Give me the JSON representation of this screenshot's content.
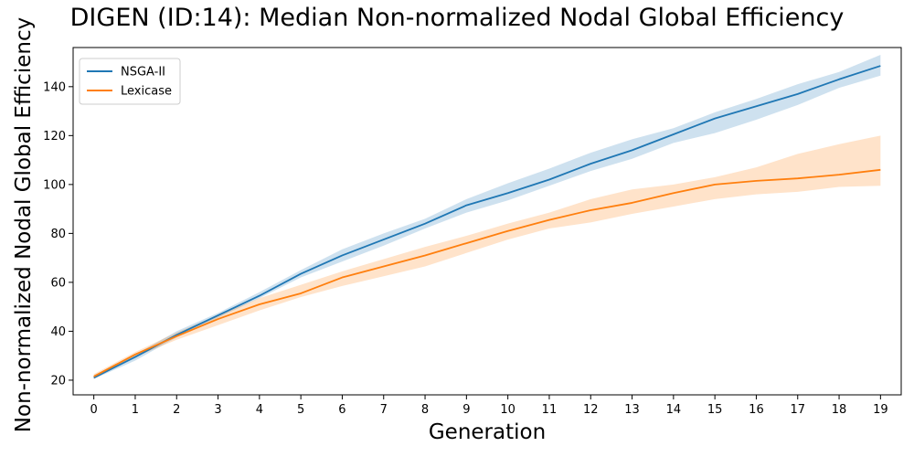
{
  "chart_data": {
    "type": "line",
    "title": "DIGEN (ID:14): Median Non-normalized Nodal Global Efficiency",
    "xlabel": "Generation",
    "ylabel": "Non-normalized Nodal Global Efficiency",
    "x": [
      0,
      1,
      2,
      3,
      4,
      5,
      6,
      7,
      8,
      9,
      10,
      11,
      12,
      13,
      14,
      15,
      16,
      17,
      18,
      19
    ],
    "xlim": [
      -0.5,
      19.5
    ],
    "ylim": [
      14,
      156
    ],
    "yticks": [
      20,
      40,
      60,
      80,
      100,
      120,
      140
    ],
    "grid": false,
    "legend_position": "top-left",
    "series": [
      {
        "name": "NSGA-II",
        "color": "#1f77b4",
        "values": [
          21,
          29.5,
          38.5,
          46.5,
          54.5,
          63.5,
          71,
          77.5,
          84,
          91.5,
          96.5,
          102,
          108.5,
          114,
          120.5,
          127,
          132,
          137,
          143,
          148.5
        ],
        "lower": [
          20.5,
          28,
          37.5,
          45.5,
          53.5,
          62,
          68.5,
          75,
          82,
          88.5,
          93.5,
          99.5,
          105.5,
          110.5,
          117,
          121,
          126.5,
          132.5,
          139.5,
          144.5
        ],
        "upper": [
          22,
          30.5,
          40,
          47.5,
          56,
          65,
          73.5,
          80,
          86,
          94,
          100.5,
          106.5,
          113,
          118.5,
          123,
          129.5,
          135,
          141,
          146,
          153
        ]
      },
      {
        "name": "Lexicase",
        "color": "#ff7f0e",
        "values": [
          21.5,
          30.5,
          38,
          45,
          51,
          55.5,
          62,
          66.5,
          71,
          76,
          81,
          85.5,
          89.5,
          92.5,
          96.5,
          100,
          101.5,
          102.5,
          104,
          106
        ],
        "lower": [
          20.5,
          29.5,
          36.5,
          42.5,
          48.5,
          54,
          58.5,
          62.5,
          66.5,
          72,
          77.5,
          82,
          84.5,
          88,
          91,
          94,
          96,
          97,
          99,
          99.5
        ],
        "upper": [
          22.5,
          31.5,
          39.5,
          46.5,
          53.5,
          59,
          64.5,
          69.5,
          74.5,
          79,
          84,
          88.5,
          94,
          98,
          100,
          103,
          107,
          112.5,
          116.5,
          120
        ]
      }
    ]
  }
}
